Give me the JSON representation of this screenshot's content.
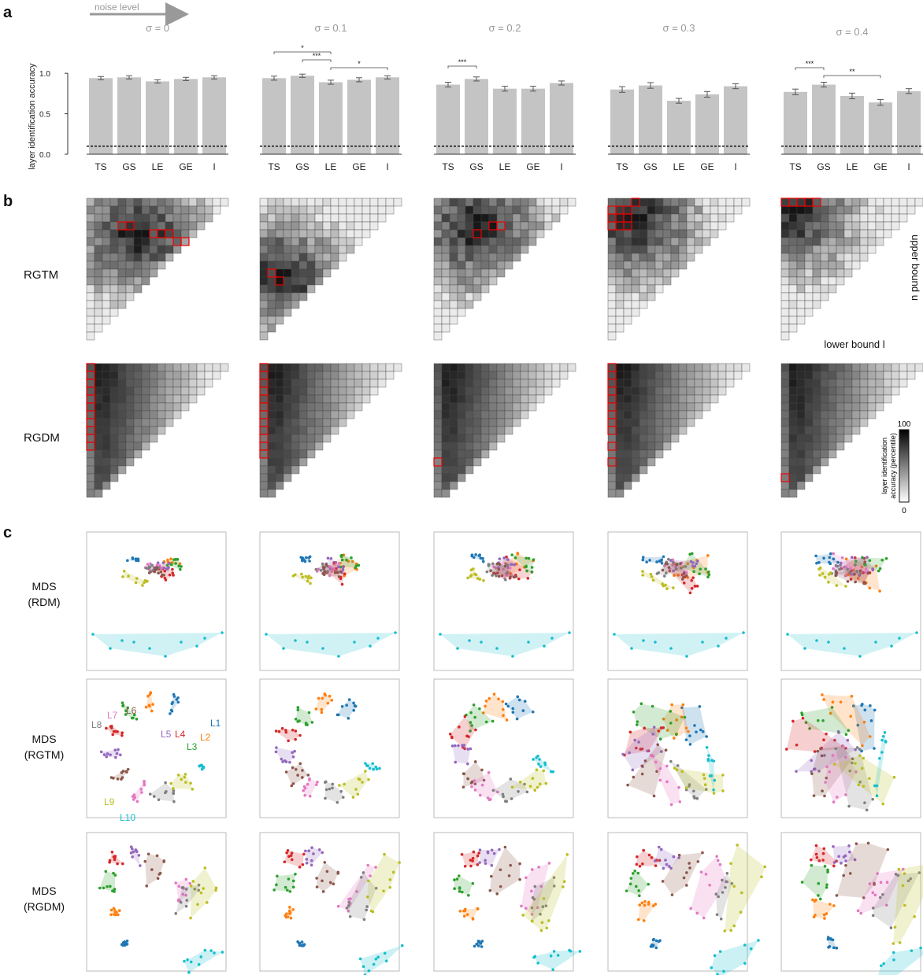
{
  "panel_labels": {
    "a": "a",
    "b": "b",
    "c": "c"
  },
  "noise_label": "noise level",
  "sigma_titles": [
    "σ = 0",
    "σ = 0.1",
    "σ = 0.2",
    "σ = 0.3",
    "σ = 0.4"
  ],
  "row_labels": {
    "rgtm": "RGTM",
    "rgdm": "RGDM",
    "mds_rdm": [
      "MDS",
      "(RDM)"
    ],
    "mds_rgtm": [
      "MDS",
      "(RGTM)"
    ],
    "mds_rgdm": [
      "MDS",
      "(RGDM)"
    ]
  },
  "axis": {
    "upper_bound": "upper bound u",
    "lower_bound": "lower bound l"
  },
  "colorbar": {
    "label_line1": "layer identification",
    "label_line2": "accuracy (percentile)",
    "max": "100",
    "min": "0"
  },
  "layer_names": [
    "L1",
    "L2",
    "L3",
    "L4",
    "L5",
    "L6",
    "L7",
    "L8",
    "L9",
    "L10"
  ],
  "layer_colors": [
    "#1f77b4",
    "#ff7f0e",
    "#2ca02c",
    "#d62728",
    "#9467bd",
    "#8c564b",
    "#e377c2",
    "#7f7f7f",
    "#bcbd22",
    "#17becf"
  ],
  "chart_data": {
    "type": "bar",
    "ylabel": "layer identification accuracy",
    "ylim": [
      0,
      1.05
    ],
    "yticks": [
      "0.0",
      "0.5",
      "1.0"
    ],
    "categories": [
      "TS",
      "GS",
      "LE",
      "GE",
      "I"
    ],
    "chance_level": 0.1,
    "panels": [
      {
        "title": "σ = 0",
        "values": [
          0.94,
          0.95,
          0.9,
          0.93,
          0.95
        ],
        "errors": [
          0.04,
          0.04,
          0.04,
          0.04,
          0.04
        ],
        "sig": []
      },
      {
        "title": "σ = 0.1",
        "values": [
          0.94,
          0.97,
          0.89,
          0.92,
          0.95
        ],
        "errors": [
          0.05,
          0.04,
          0.05,
          0.05,
          0.04
        ],
        "sig": [
          {
            "from": 0,
            "to": 2,
            "stars": "*"
          },
          {
            "from": 1,
            "to": 2,
            "stars": "***"
          },
          {
            "from": 2,
            "to": 4,
            "stars": "*"
          }
        ]
      },
      {
        "title": "σ = 0.2",
        "values": [
          0.86,
          0.93,
          0.81,
          0.81,
          0.88
        ],
        "errors": [
          0.06,
          0.05,
          0.06,
          0.06,
          0.05
        ],
        "sig": [
          {
            "from": 0,
            "to": 1,
            "stars": "***"
          }
        ]
      },
      {
        "title": "σ = 0.3",
        "values": [
          0.8,
          0.85,
          0.66,
          0.74,
          0.84
        ],
        "errors": [
          0.07,
          0.07,
          0.06,
          0.07,
          0.06
        ],
        "sig": []
      },
      {
        "title": "σ = 0.4",
        "values": [
          0.77,
          0.86,
          0.72,
          0.64,
          0.78
        ],
        "errors": [
          0.07,
          0.06,
          0.07,
          0.07,
          0.06
        ],
        "sig": [
          {
            "from": 0,
            "to": 1,
            "stars": "***"
          },
          {
            "from": 1,
            "to": 3,
            "stars": "**"
          }
        ]
      }
    ]
  }
}
